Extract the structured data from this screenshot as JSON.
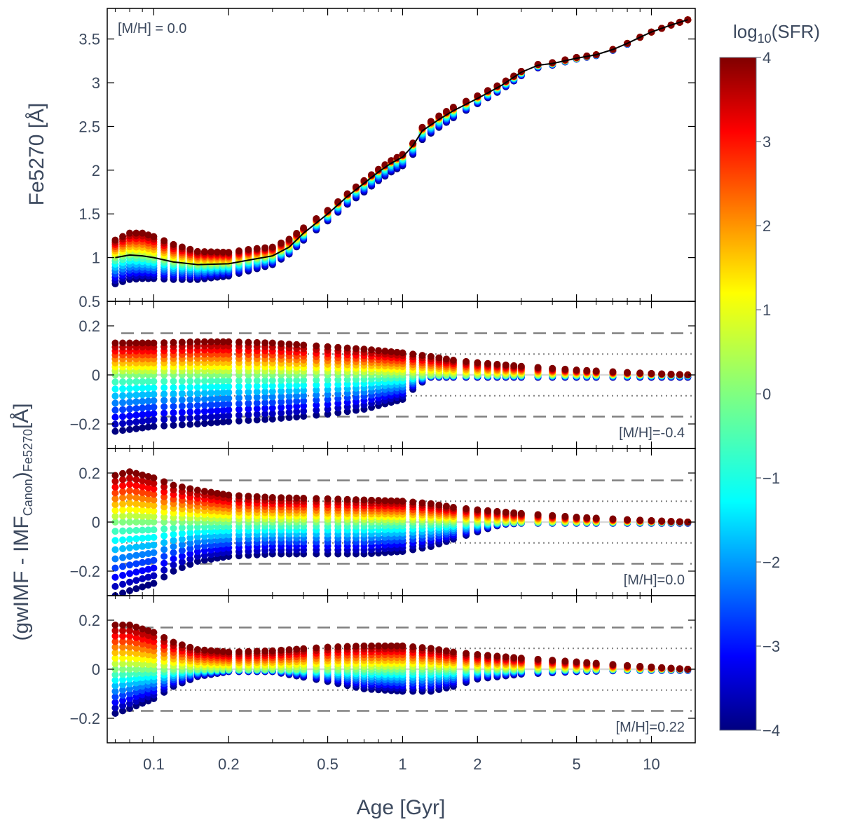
{
  "chart_data": {
    "type": "scatter",
    "colorbar": {
      "title_main": "log",
      "title_sub": "10",
      "title_rest": "(SFR)",
      "range": [
        -4,
        4
      ],
      "ticks": [
        "4",
        "3",
        "2",
        "1",
        "0",
        "−1",
        "−2",
        "−3",
        "−4"
      ],
      "colormap": "jet"
    },
    "x": {
      "label": "Age [Gyr]",
      "scale": "log",
      "lim": [
        0.065,
        15
      ],
      "tick_values": [
        0.1,
        0.2,
        0.5,
        1,
        2,
        5,
        10
      ],
      "tick_labels": [
        "0.1",
        "0.2",
        "0.5",
        "1",
        "2",
        "5",
        "10"
      ]
    },
    "sfr_levels": [
      -4,
      -3.5,
      -3,
      -2.5,
      -2,
      -1.5,
      -1,
      -0.5,
      0,
      0.5,
      1,
      1.5,
      2,
      2.5,
      3,
      3.5,
      4
    ],
    "ages": [
      0.07,
      0.075,
      0.08,
      0.085,
      0.09,
      0.095,
      0.1,
      0.11,
      0.12,
      0.13,
      0.14,
      0.15,
      0.16,
      0.17,
      0.18,
      0.19,
      0.2,
      0.22,
      0.24,
      0.26,
      0.28,
      0.3,
      0.325,
      0.35,
      0.375,
      0.4,
      0.45,
      0.5,
      0.55,
      0.6,
      0.65,
      0.7,
      0.75,
      0.8,
      0.85,
      0.9,
      0.95,
      1.0,
      1.1,
      1.2,
      1.3,
      1.4,
      1.5,
      1.6,
      1.8,
      2.0,
      2.2,
      2.4,
      2.6,
      2.8,
      3.0,
      3.5,
      4.0,
      4.5,
      5.0,
      5.5,
      6.0,
      7.0,
      8.0,
      9.0,
      10.0,
      11.0,
      12.0,
      13.0,
      14.0
    ],
    "panels": [
      {
        "label": "[M/H] = 0.0",
        "ylabel": "Fe5270 [Å]",
        "ylim": [
          0.5,
          3.85
        ],
        "tick_values": [
          0.5,
          1,
          1.5,
          2,
          2.5,
          3,
          3.5
        ],
        "tick_labels": [
          "0.5",
          "1",
          "1.5",
          "2",
          "2.5",
          "3",
          "3.5"
        ],
        "canonical_curve": {
          "x": [
            0.07,
            0.08,
            0.09,
            0.1,
            0.12,
            0.15,
            0.2,
            0.25,
            0.3,
            0.35,
            0.4,
            0.5,
            0.6,
            0.7,
            0.8,
            0.9,
            1.0,
            1.1,
            1.2,
            1.4,
            1.6,
            2.0,
            2.5,
            3.0,
            3.5,
            4.0,
            5.0,
            6.0,
            7.0,
            8.0,
            9.0,
            10.0,
            12.0,
            14.0
          ],
          "y": [
            1.0,
            1.03,
            1.02,
            1.0,
            0.95,
            0.92,
            0.93,
            0.98,
            1.02,
            1.12,
            1.28,
            1.5,
            1.7,
            1.85,
            1.98,
            2.08,
            2.15,
            2.28,
            2.45,
            2.58,
            2.68,
            2.82,
            2.97,
            3.12,
            3.2,
            3.22,
            3.28,
            3.32,
            3.38,
            3.45,
            3.52,
            3.58,
            3.66,
            3.72
          ]
        },
        "spread_upper": [
          0.2,
          0.25,
          0.26,
          0.24,
          0.2,
          0.15,
          0.13,
          0.12,
          0.1,
          0.09,
          0.06,
          0.04,
          0.03,
          0.03,
          0.03,
          0.03,
          0.03,
          0.03,
          0.04,
          0.04,
          0.04,
          0.03,
          0.02,
          0.01,
          0.01,
          0.01,
          0.01,
          0.0,
          0.0,
          0.0,
          0.0,
          0.0,
          0.0,
          0.0
        ],
        "spread_lower": [
          0.3,
          0.28,
          0.26,
          0.24,
          0.2,
          0.17,
          0.14,
          0.12,
          0.1,
          0.08,
          0.08,
          0.08,
          0.09,
          0.1,
          0.1,
          0.1,
          0.1,
          0.1,
          0.1,
          0.09,
          0.08,
          0.06,
          0.05,
          0.04,
          0.03,
          0.02,
          0.01,
          0.01,
          0.01,
          0.01,
          0.0,
          0.0,
          0.0,
          0.0
        ]
      },
      {
        "label": "[M/H]=-0.4",
        "ylim": [
          -0.3,
          0.3
        ],
        "tick_values": [
          -0.2,
          0,
          0.2
        ],
        "tick_labels": [
          "−0.2",
          "0",
          "0.2"
        ],
        "envelope_upper": {
          "x": [
            0.07,
            0.1,
            0.15,
            0.2,
            0.3,
            0.5,
            0.7,
            1.0,
            1.3,
            1.6,
            2.0,
            3.0,
            5.0,
            8.0,
            14.0
          ],
          "y": [
            0.13,
            0.13,
            0.135,
            0.135,
            0.13,
            0.115,
            0.105,
            0.09,
            0.075,
            0.06,
            0.05,
            0.035,
            0.02,
            0.01,
            0.0
          ]
        },
        "envelope_lower": {
          "x": [
            0.07,
            0.1,
            0.15,
            0.2,
            0.3,
            0.5,
            0.7,
            1.0,
            1.15,
            1.3,
            2.0,
            3.0,
            5.0,
            8.0,
            14.0
          ],
          "y": [
            -0.23,
            -0.21,
            -0.2,
            -0.19,
            -0.18,
            -0.16,
            -0.14,
            -0.1,
            -0.04,
            -0.01,
            -0.01,
            -0.01,
            -0.01,
            -0.01,
            -0.01
          ]
        },
        "dashed_levels": [
          0.17,
          -0.17
        ],
        "dotted_levels": [
          0.085,
          -0.085
        ]
      },
      {
        "label": "[M/H]=0.0",
        "ylim": [
          -0.3,
          0.3
        ],
        "tick_values": [
          -0.2,
          0,
          0.2
        ],
        "tick_labels": [
          "−0.2",
          "0",
          "0.2"
        ],
        "envelope_upper": {
          "x": [
            0.07,
            0.08,
            0.1,
            0.12,
            0.15,
            0.2,
            0.3,
            0.5,
            0.7,
            1.0,
            1.3,
            1.6,
            2.0,
            3.0,
            5.0,
            8.0,
            14.0
          ],
          "y": [
            0.19,
            0.205,
            0.18,
            0.15,
            0.13,
            0.11,
            0.1,
            0.095,
            0.09,
            0.085,
            0.075,
            0.06,
            0.05,
            0.035,
            0.02,
            0.01,
            0.0
          ]
        },
        "envelope_lower": {
          "x": [
            0.07,
            0.08,
            0.1,
            0.12,
            0.15,
            0.2,
            0.3,
            0.5,
            0.7,
            1.0,
            1.3,
            1.6,
            2.0,
            2.5,
            3.0,
            5.0,
            8.0,
            14.0
          ],
          "y": [
            -0.3,
            -0.28,
            -0.25,
            -0.2,
            -0.16,
            -0.14,
            -0.13,
            -0.13,
            -0.13,
            -0.12,
            -0.1,
            -0.07,
            -0.04,
            -0.01,
            -0.005,
            -0.005,
            -0.005,
            -0.005
          ]
        },
        "dashed_levels": [
          0.17,
          -0.17
        ],
        "dotted_levels": [
          0.085,
          -0.085
        ]
      },
      {
        "label": "[M/H]=0.22",
        "ylim": [
          -0.3,
          0.3
        ],
        "tick_values": [
          -0.2,
          0,
          0.2
        ],
        "tick_labels": [
          "−0.2",
          "0",
          "0.2"
        ],
        "envelope_upper": {
          "x": [
            0.07,
            0.08,
            0.1,
            0.12,
            0.15,
            0.2,
            0.3,
            0.5,
            0.7,
            1.0,
            1.3,
            1.6,
            2.0,
            3.0,
            5.0,
            8.0,
            14.0
          ],
          "y": [
            0.18,
            0.18,
            0.15,
            0.11,
            0.08,
            0.07,
            0.075,
            0.09,
            0.095,
            0.095,
            0.085,
            0.07,
            0.06,
            0.045,
            0.03,
            0.015,
            0.0
          ]
        },
        "envelope_lower": {
          "x": [
            0.07,
            0.08,
            0.1,
            0.12,
            0.15,
            0.2,
            0.3,
            0.5,
            0.7,
            1.0,
            1.3,
            1.6,
            2.0,
            3.0,
            5.0,
            8.0,
            14.0
          ],
          "y": [
            -0.18,
            -0.16,
            -0.12,
            -0.07,
            -0.03,
            -0.01,
            -0.01,
            -0.05,
            -0.08,
            -0.09,
            -0.09,
            -0.07,
            -0.04,
            -0.02,
            -0.01,
            -0.005,
            -0.005
          ]
        },
        "dashed_levels": [
          0.17,
          -0.17
        ],
        "dotted_levels": [
          0.085,
          -0.085
        ]
      }
    ],
    "shared_ylabel": {
      "p1": "(gwIMF - IMF",
      "sub": "Canon",
      "p2": ")",
      "sub2": "Fe5270",
      "p3": "[Å]"
    }
  }
}
